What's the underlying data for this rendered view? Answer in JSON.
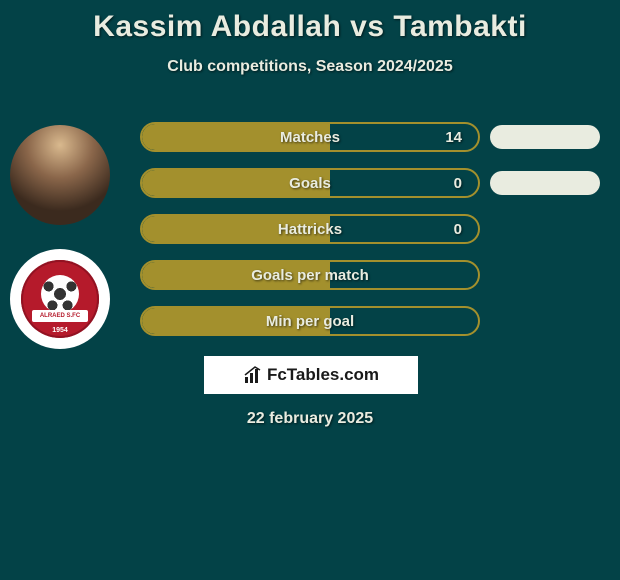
{
  "title": "Kassim Abdallah vs Tambakti",
  "subtitle": "Club competitions, Season 2024/2025",
  "date": "22 february 2025",
  "logo_text": "FcTables.com",
  "colors": {
    "background": "#034247",
    "bar_border": "#a3902d",
    "bar_fill": "#a3902d",
    "text": "#e9ece0",
    "mini_bar": "#e9ece0",
    "logo_bg": "#ffffff",
    "club_badge": "#b51a2b"
  },
  "club": {
    "ribbon_text": "ALRAED S.FC",
    "year": "1954"
  },
  "stats": [
    {
      "label": "Matches",
      "value": "14",
      "fill_pct": 56,
      "show_value": true,
      "mini": true
    },
    {
      "label": "Goals",
      "value": "0",
      "fill_pct": 56,
      "show_value": true,
      "mini": true
    },
    {
      "label": "Hattricks",
      "value": "0",
      "fill_pct": 56,
      "show_value": true,
      "mini": false
    },
    {
      "label": "Goals per match",
      "value": "",
      "fill_pct": 56,
      "show_value": false,
      "mini": false
    },
    {
      "label": "Min per goal",
      "value": "",
      "fill_pct": 56,
      "show_value": false,
      "mini": false
    }
  ]
}
